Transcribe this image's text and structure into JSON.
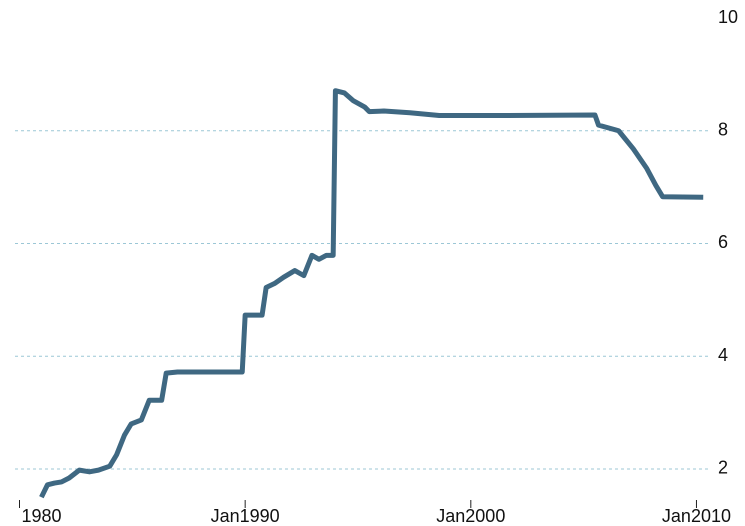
{
  "chart_data": {
    "type": "line",
    "x": [
      1980.97,
      1981.24,
      1981.55,
      1981.86,
      1982.2,
      1982.65,
      1983.1,
      1983.5,
      1984.0,
      1984.3,
      1984.65,
      1984.95,
      1985.4,
      1985.75,
      1986.3,
      1986.5,
      1987.0,
      1989.87,
      1990.0,
      1990.75,
      1990.93,
      1991.3,
      1991.7,
      1992.2,
      1992.6,
      1992.96,
      1993.27,
      1993.6,
      1993.9,
      1994.0,
      1994.4,
      1994.8,
      1995.3,
      1995.5,
      1996.15,
      1997.3,
      1998.6,
      2001.2,
      2005.5,
      2005.66,
      2006.55,
      2007.2,
      2007.8,
      2008.2,
      2008.5,
      2010.3
    ],
    "series": [
      {
        "color": "#3f6882",
        "values": [
          1.5,
          1.72,
          1.75,
          1.77,
          1.84,
          1.98,
          1.95,
          1.98,
          2.05,
          2.25,
          2.6,
          2.8,
          2.87,
          3.22,
          3.22,
          3.7,
          3.72,
          3.72,
          4.73,
          4.73,
          5.22,
          5.29,
          5.4,
          5.52,
          5.43,
          5.79,
          5.72,
          5.79,
          5.79,
          8.71,
          8.67,
          8.53,
          8.42,
          8.34,
          8.35,
          8.32,
          8.27,
          8.27,
          8.28,
          8.1,
          8.0,
          7.68,
          7.33,
          7.03,
          6.83,
          6.82
        ]
      }
    ],
    "xlim": [
      1979.8,
      2010.6
    ],
    "xticks": [
      {
        "value": 1980,
        "label": "1980"
      },
      {
        "value": 1990,
        "label": "Jan1990"
      },
      {
        "value": 2000,
        "label": "Jan2000"
      },
      {
        "value": 2010,
        "label": "Jan2010"
      }
    ],
    "ylim": [
      1.45,
      10
    ],
    "yticks": [
      2,
      4,
      6,
      8,
      10
    ],
    "grid": true
  }
}
